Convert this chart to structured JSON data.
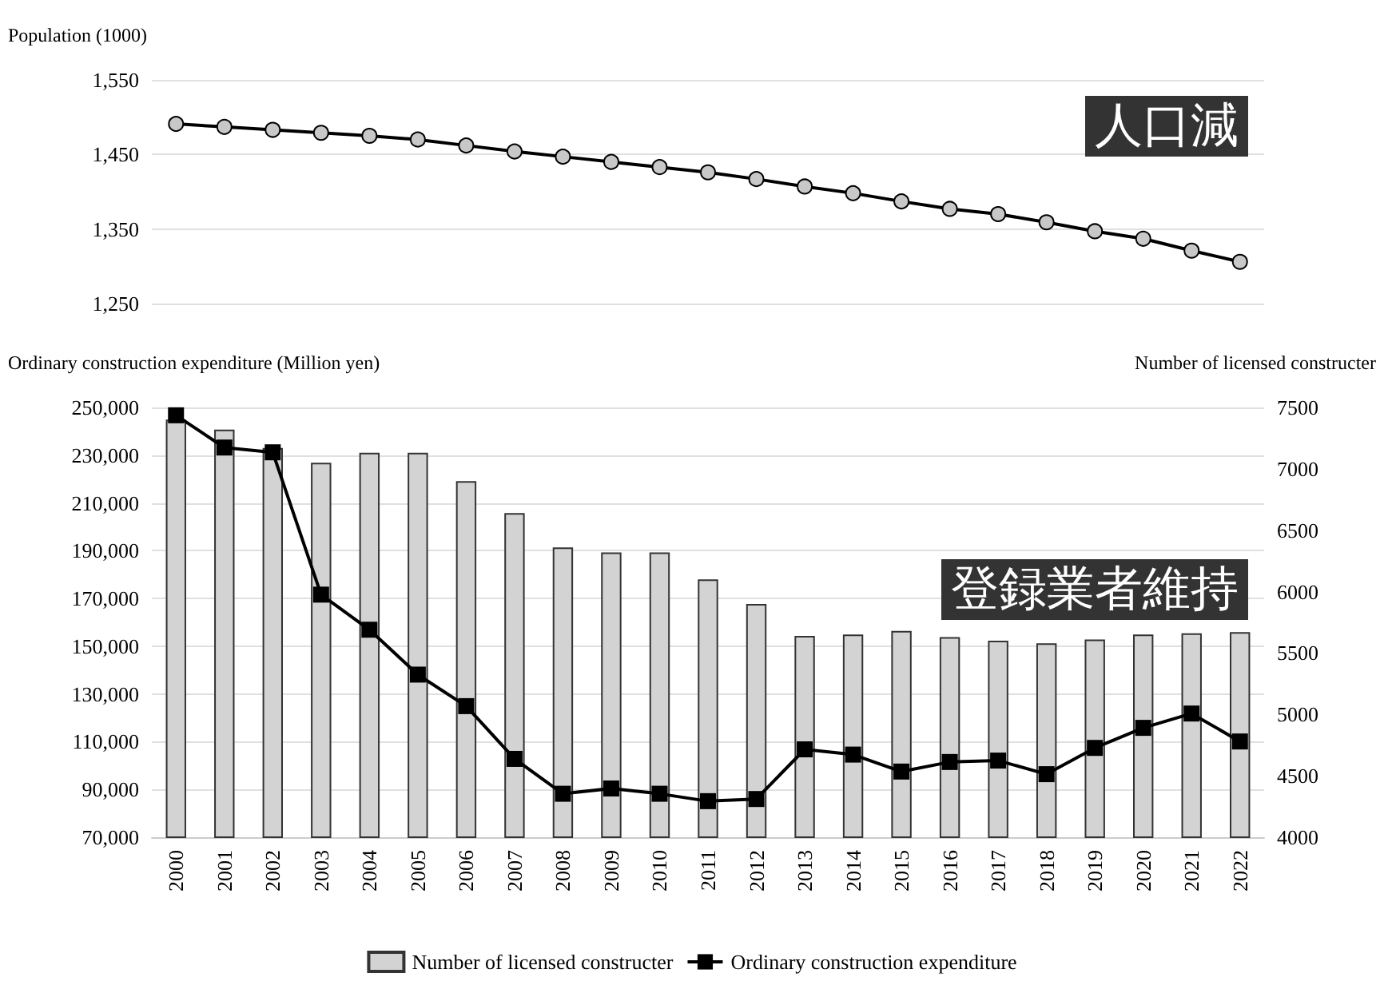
{
  "chart_data": [
    {
      "type": "line",
      "ylabel": "Population (1000)",
      "categories": [
        "2000",
        "2001",
        "2002",
        "2003",
        "2004",
        "2005",
        "2006",
        "2007",
        "2008",
        "2009",
        "2010",
        "2011",
        "2012",
        "2013",
        "2014",
        "2015",
        "2016",
        "2017",
        "2018",
        "2019",
        "2020",
        "2021",
        "2022"
      ],
      "series": [
        {
          "color": "#000000",
          "values": [
            1491,
            1487,
            1483,
            1479,
            1475,
            1470,
            1462,
            1454,
            1447,
            1440,
            1433,
            1426,
            1417,
            1407,
            1398,
            1387,
            1377,
            1370,
            1359,
            1347,
            1337,
            1321,
            1306
          ]
        }
      ],
      "ylim": [
        1250,
        1550
      ],
      "yticks": [
        {
          "value": 1250,
          "label": "1,250"
        },
        {
          "value": 1350,
          "label": "1,350"
        },
        {
          "value": 1450,
          "label": "1,450"
        },
        {
          "value": 1550,
          "label": "1,550"
        }
      ],
      "tick_labels": "y",
      "grid": "y",
      "marker": "circle",
      "legend": false,
      "annotations": [
        "人口減"
      ]
    },
    {
      "type": "bar",
      "ylabel": "Ordinary construction expenditure (Million yen)",
      "y2label": "Number of licensed constructer",
      "categories": [
        "2000",
        "2001",
        "2002",
        "2003",
        "2004",
        "2005",
        "2006",
        "2007",
        "2008",
        "2009",
        "2010",
        "2011",
        "2012",
        "2013",
        "2014",
        "2015",
        "2016",
        "2017",
        "2018",
        "2019",
        "2020",
        "2021",
        "2022"
      ],
      "series": [
        {
          "name": "Number of licensed constructer",
          "type": "bar",
          "axis": "y2",
          "color": "#d3d3d3",
          "values": [
            7400,
            7320,
            7170,
            7050,
            7130,
            7130,
            6900,
            6640,
            6360,
            6320,
            6320,
            6100,
            5900,
            5640,
            5650,
            5680,
            5630,
            5600,
            5580,
            5610,
            5650,
            5660,
            5670
          ]
        },
        {
          "name": "Ordinary construction expenditure",
          "type": "line",
          "axis": "y",
          "color": "#000000",
          "values": [
            246700,
            233200,
            231200,
            171600,
            156900,
            138100,
            124900,
            102800,
            88200,
            90400,
            88200,
            85100,
            86000,
            106800,
            104600,
            97500,
            101500,
            102100,
            96400,
            107400,
            115800,
            121800,
            110100
          ]
        }
      ],
      "ylim": [
        70000,
        250000
      ],
      "yticks": [
        {
          "value": 70000,
          "label": "70,000"
        },
        {
          "value": 90000,
          "label": "90,000"
        },
        {
          "value": 110000,
          "label": "110,000"
        },
        {
          "value": 130000,
          "label": "130,000"
        },
        {
          "value": 150000,
          "label": "150,000"
        },
        {
          "value": 170000,
          "label": "170,000"
        },
        {
          "value": 190000,
          "label": "190,000"
        },
        {
          "value": 210000,
          "label": "210,000"
        },
        {
          "value": 230000,
          "label": "230,000"
        },
        {
          "value": 250000,
          "label": "250,000"
        }
      ],
      "y2lim": [
        4000,
        7500
      ],
      "y2ticks": [
        4000,
        4500,
        5000,
        5500,
        6000,
        6500,
        7000,
        7500
      ],
      "grid": "y",
      "marker": "square",
      "legend": "bottom",
      "annotations": [
        "登録業者維持"
      ]
    }
  ]
}
